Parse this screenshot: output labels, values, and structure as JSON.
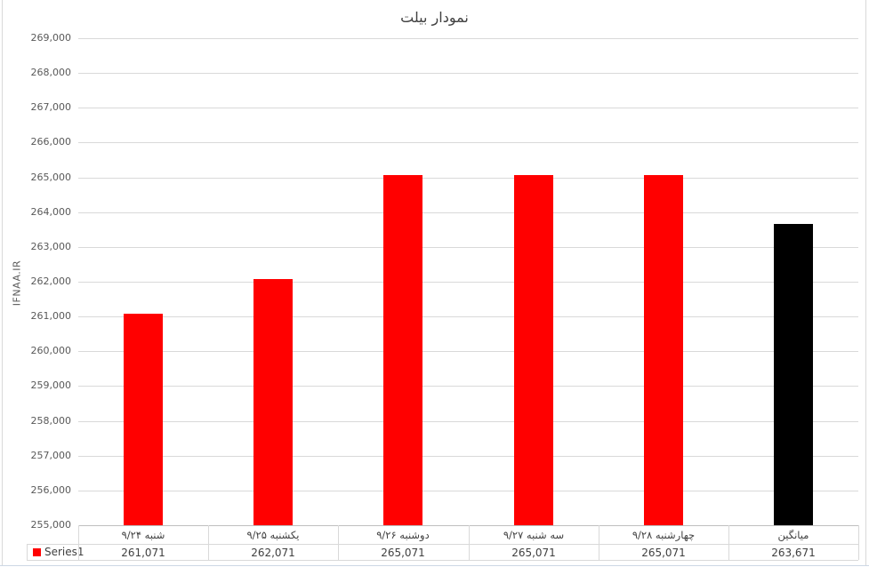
{
  "chart_data": {
    "type": "bar",
    "title": "نمودار بیلت",
    "ylabel": "IFNAA.IR",
    "categories": [
      "شنبه ۹/۲۴",
      "یکشنبه ۹/۲۵",
      "دوشنبه ۹/۲۶",
      "سه شنبه ۹/۲۷",
      "چهارشنبه ۹/۲۸",
      "میانگین"
    ],
    "series": [
      {
        "name": "Series1",
        "values": [
          261071,
          262071,
          265071,
          265071,
          265071,
          263671
        ],
        "bar_colors": [
          "#FF0000",
          "#FF0000",
          "#FF0000",
          "#FF0000",
          "#FF0000",
          "#000000"
        ]
      }
    ],
    "value_labels": [
      "261,071",
      "262,071",
      "265,071",
      "265,071",
      "265,071",
      "263,671"
    ],
    "ylim": [
      255000,
      269000
    ],
    "ytick_interval": 1000,
    "ytick_labels": [
      "255,000",
      "256,000",
      "257,000",
      "258,000",
      "259,000",
      "260,000",
      "261,000",
      "262,000",
      "263,000",
      "264,000",
      "265,000",
      "266,000",
      "267,000",
      "268,000",
      "269,000"
    ],
    "grid": true,
    "legend": {
      "label": "Series1",
      "marker_color": "#FF0000",
      "position": "data-table-left"
    }
  },
  "colors": {
    "bar_default": "#FF0000",
    "bar_average": "#000000",
    "gridline": "#D9D9D9",
    "axis_line": "#BFBFBF",
    "axis_text": "#595959",
    "title_text": "#404040",
    "table_border": "#D9D9D9",
    "table_text": "#404040",
    "worksheet_gridline": "#CDD7E4",
    "background": "#FFFFFF"
  }
}
